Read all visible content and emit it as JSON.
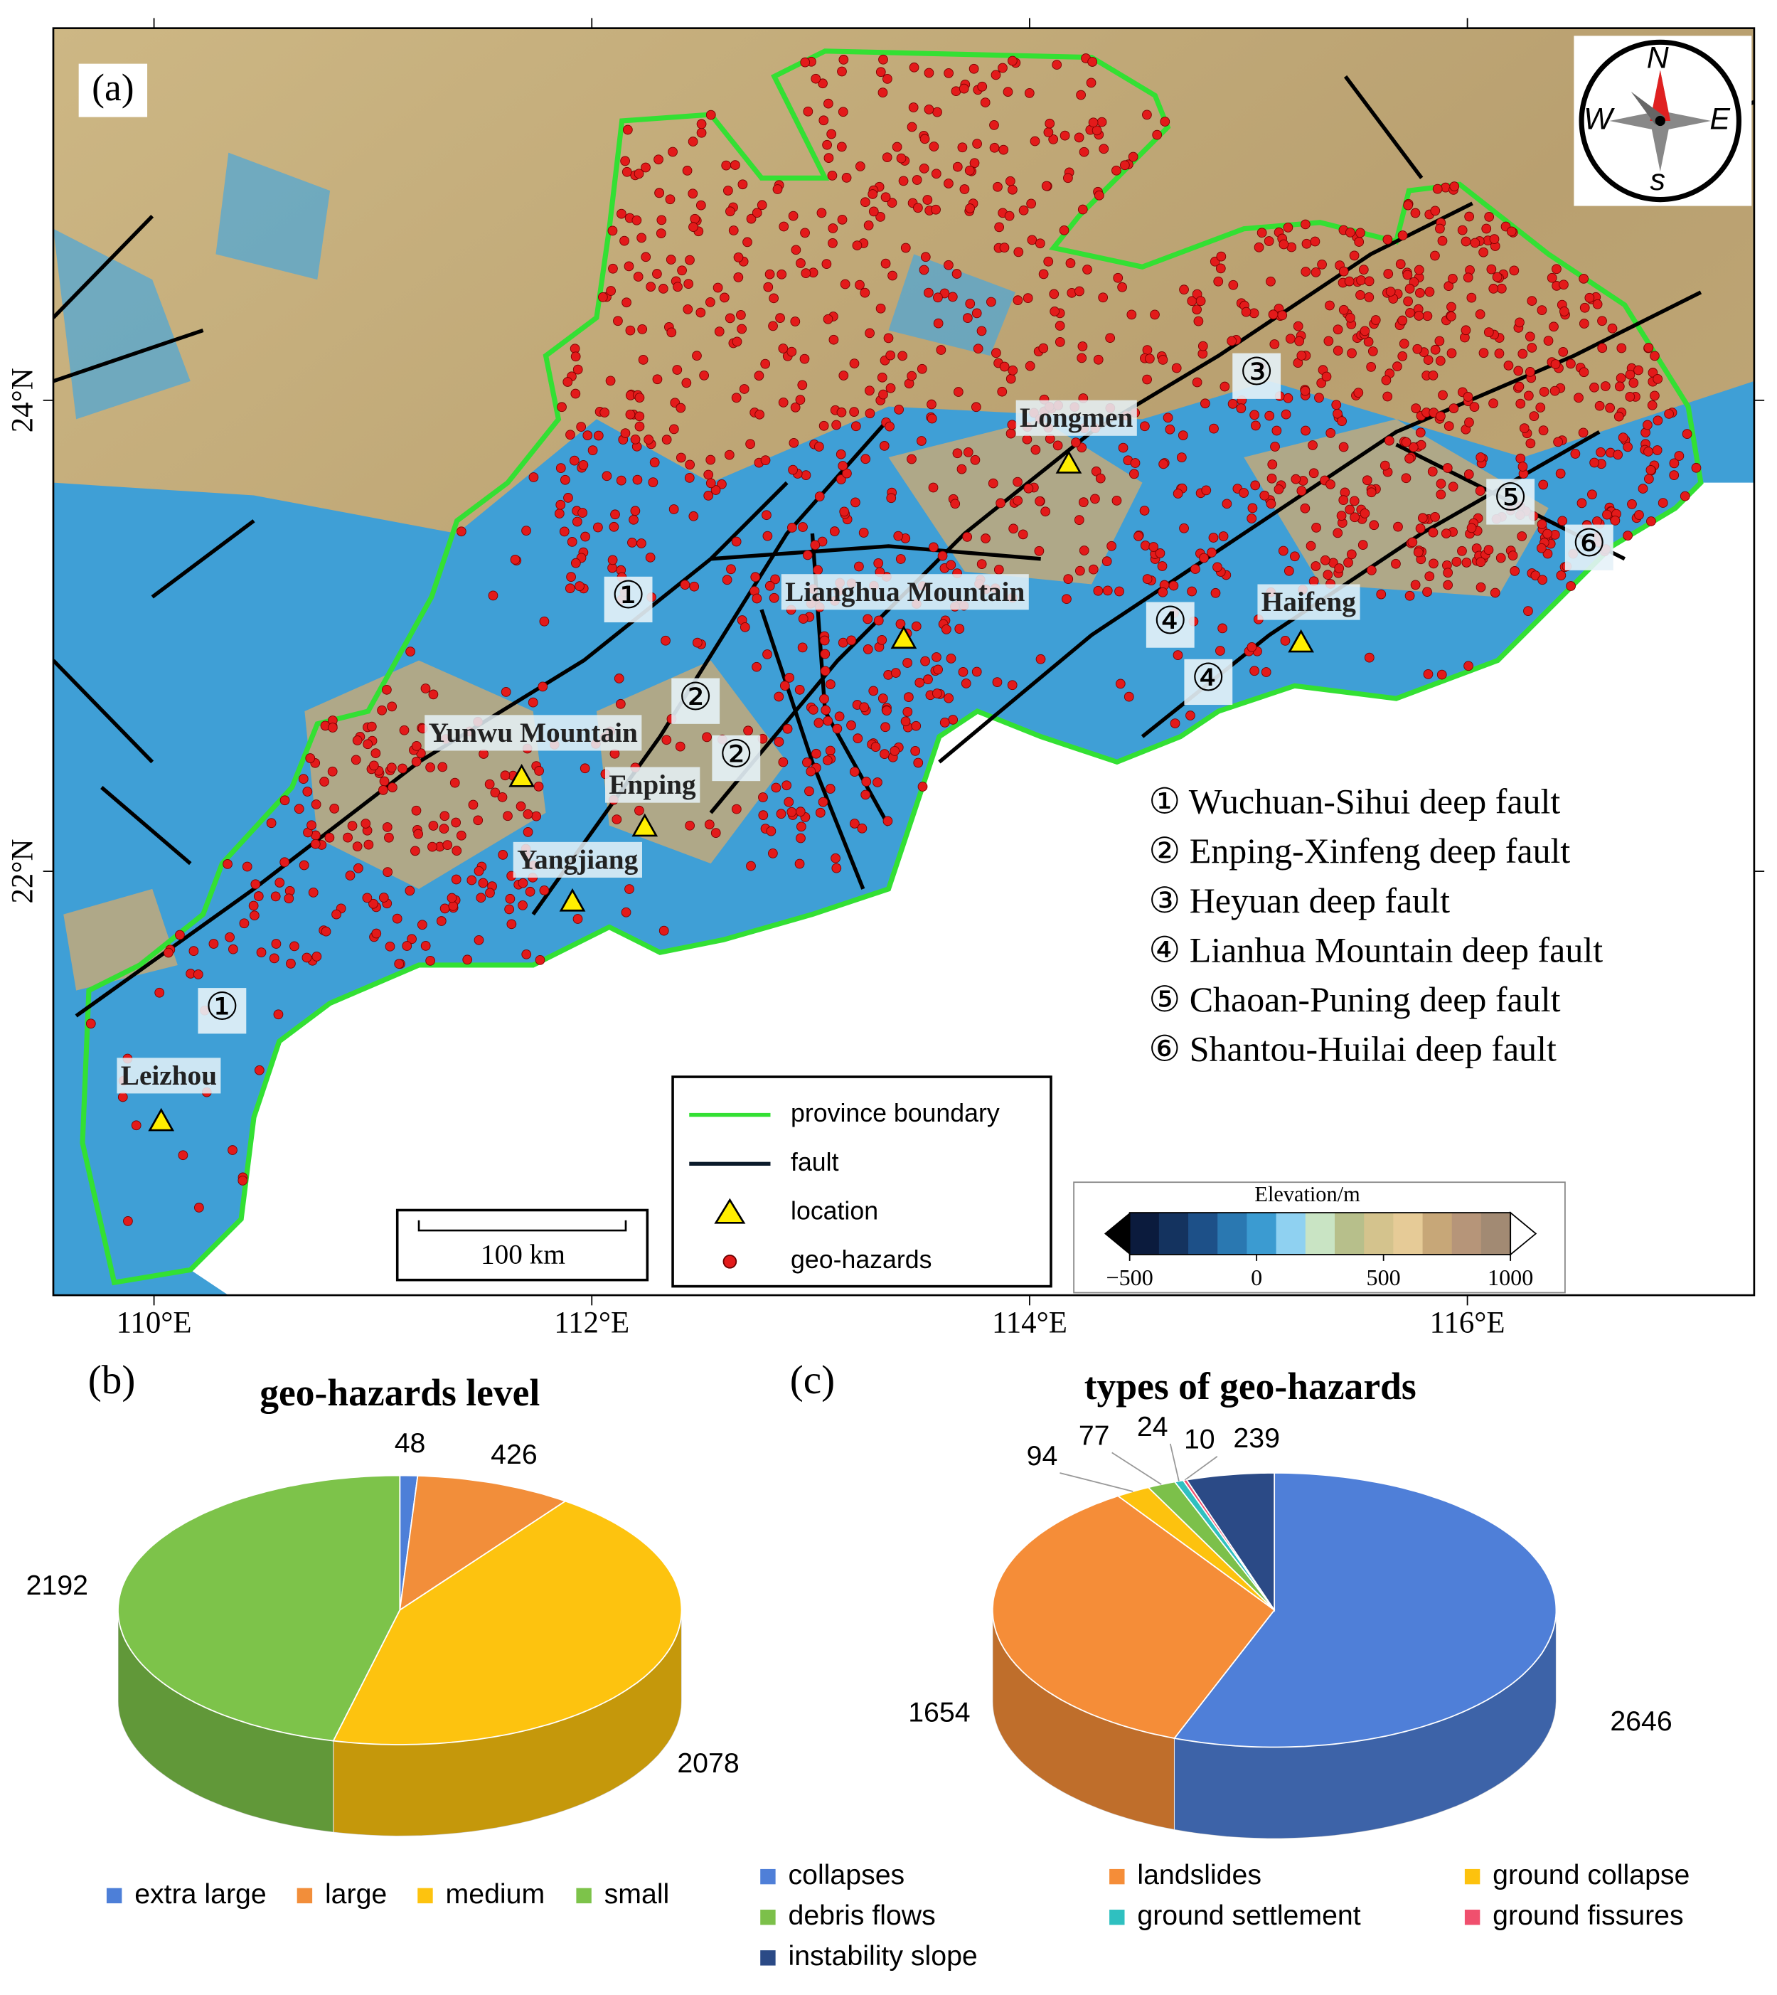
{
  "map": {
    "panel_label": "(a)",
    "xlim": [
      109.54,
      117.31
    ],
    "ylim": [
      20.2,
      25.58
    ],
    "xticks": [
      {
        "value": 110,
        "label": "110°E"
      },
      {
        "value": 112,
        "label": "112°E"
      },
      {
        "value": 114,
        "label": "114°E"
      },
      {
        "value": 116,
        "label": "116°E"
      }
    ],
    "yticks": [
      {
        "value": 22,
        "label": "22°N"
      },
      {
        "value": 24,
        "label": "24°N"
      }
    ],
    "compass": [
      "N",
      "E",
      "s",
      "W"
    ],
    "locations": [
      "Longmen",
      "Lianghua Mountain",
      "Haifeng",
      "Yunwu Mountain",
      "Enping",
      "Yangjiang",
      "Leizhou"
    ],
    "fault_markers": [
      "①",
      "①",
      "②",
      "②",
      "③",
      "④",
      "④",
      "⑤",
      "⑥"
    ],
    "fault_legend": [
      "① Wuchuan-Sihui deep fault",
      "② Enping-Xinfeng deep fault",
      "③ Heyuan deep fault",
      "④ Lianhua Mountain deep fault",
      "⑤ Chaoan-Puning deep fault",
      "⑥ Shantou-Huilai deep fault"
    ],
    "legend": [
      "province boundary",
      "fault",
      "location",
      "geo-hazards"
    ],
    "scale_bar": "100 km",
    "colorbar": {
      "title": "Elevation/m",
      "lim": [
        -500,
        1000
      ],
      "ticks": [
        {
          "value": -500,
          "label": "−500"
        },
        0,
        500,
        1000
      ]
    }
  },
  "chart_data": [
    {
      "type": "pie",
      "label": "(b)",
      "title": "geo-hazards level",
      "categories": [
        "extra large",
        "large",
        "medium",
        "small"
      ],
      "values": [
        48,
        426,
        2078,
        2192
      ],
      "colors": [
        "#4d7fd8",
        "#f28e3a",
        "#fdc30f",
        "#7dc34a"
      ]
    },
    {
      "type": "pie",
      "label": "(c)",
      "title": "types of geo-hazards",
      "categories": [
        "collapses",
        "landslides",
        "ground collapse",
        "debris flows",
        "ground settlement",
        "ground fissures",
        "instability slope"
      ],
      "values": [
        2646,
        1654,
        94,
        77,
        24,
        10,
        239
      ],
      "colors": [
        "#4f7fd8",
        "#f58d38",
        "#fdc20e",
        "#7cc04a",
        "#2fc0c0",
        "#f0506e",
        "#2b4a86"
      ]
    }
  ]
}
